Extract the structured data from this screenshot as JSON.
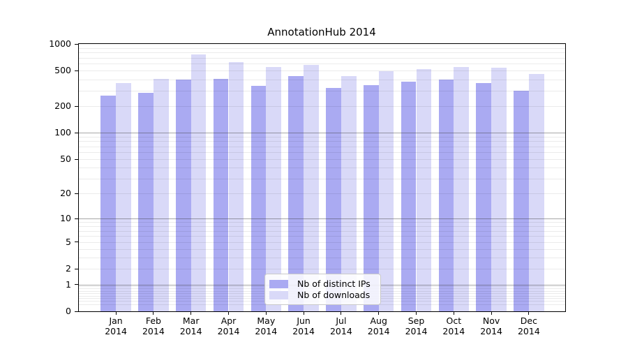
{
  "figure": {
    "title": "AnnotationHub 2014",
    "background": "#ffffff"
  },
  "chart_data": {
    "type": "bar",
    "title": "AnnotationHub 2014",
    "scale": "log1p",
    "grid": true,
    "ylim": [
      0,
      1000
    ],
    "yticks": [
      0,
      1,
      2,
      5,
      10,
      20,
      50,
      100,
      200,
      500,
      1000
    ],
    "strong_gridlines": [
      1,
      10,
      100
    ],
    "minor_gridlines": [
      0.2,
      0.3,
      0.4,
      0.5,
      0.6,
      0.7,
      0.8,
      0.9,
      2,
      3,
      4,
      5,
      6,
      7,
      8,
      9,
      20,
      30,
      40,
      50,
      60,
      70,
      80,
      90,
      200,
      300,
      400,
      500,
      600,
      700,
      800,
      900
    ],
    "categories": [
      "Jan 2014",
      "Feb 2014",
      "Mar 2014",
      "Apr 2014",
      "May 2014",
      "Jun 2014",
      "Jul 2014",
      "Aug 2014",
      "Sep 2014",
      "Oct 2014",
      "Nov 2014",
      "Dec 2014"
    ],
    "series": [
      {
        "name": "Nb of distinct IPs",
        "color": "#aaaaf2",
        "values": [
          263,
          283,
          396,
          407,
          336,
          433,
          321,
          345,
          375,
          398,
          361,
          297
        ]
      },
      {
        "name": "Nb of downloads",
        "color": "#d9d9f8",
        "values": [
          361,
          403,
          763,
          628,
          556,
          580,
          433,
          492,
          523,
          556,
          539,
          460
        ]
      }
    ],
    "legend": {
      "position": "lower center",
      "entries": [
        "Nb of distinct IPs",
        "Nb of downloads"
      ]
    }
  }
}
